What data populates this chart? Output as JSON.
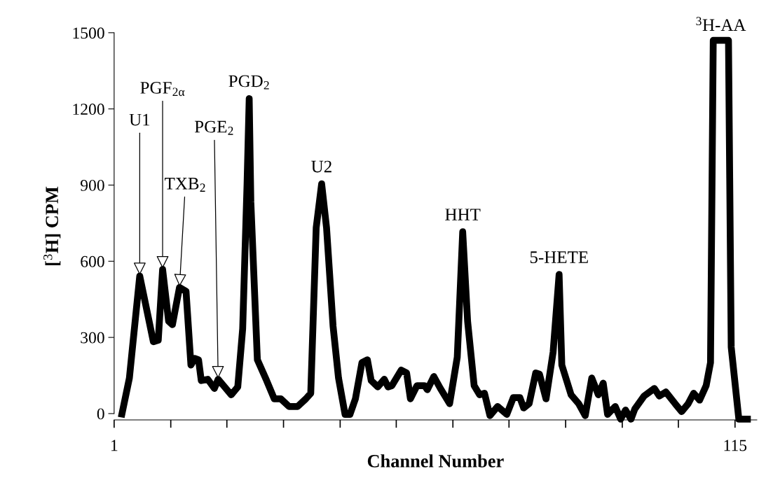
{
  "chart_data": {
    "type": "line",
    "xlabel": "Channel Number",
    "ylabel": "[$^{3}$H] CPM",
    "xlim": [
      1,
      119
    ],
    "ylim": [
      -25,
      1500
    ],
    "xticks": [
      {
        "value": 1,
        "label": "1"
      },
      {
        "value": 11.4,
        "label": null
      },
      {
        "value": 21.7,
        "label": null
      },
      {
        "value": 32.1,
        "label": null
      },
      {
        "value": 42.5,
        "label": null
      },
      {
        "value": 52.8,
        "label": null
      },
      {
        "value": 63.2,
        "label": null
      },
      {
        "value": 73.5,
        "label": null
      },
      {
        "value": 83.9,
        "label": null
      },
      {
        "value": 94.3,
        "label": null
      },
      {
        "value": 104.6,
        "label": null
      },
      {
        "value": 115,
        "label": "115"
      }
    ],
    "yticks": [
      0,
      300,
      600,
      900,
      1200,
      1500
    ],
    "grid": false,
    "marker": "none",
    "line_style": "solid",
    "series": [
      {
        "color": "#000000",
        "x": [
          2.3,
          3.8,
          5.7,
          8.2,
          9.1,
          9.9,
          11.0,
          11.7,
          13.0,
          14.2,
          15.1,
          15.8,
          16.5,
          17.0,
          18.2,
          19.4,
          20.1,
          21.1,
          22.5,
          23.7,
          24.6,
          25.4,
          25.8,
          26.1,
          27.3,
          29.0,
          30.4,
          31.6,
          33.1,
          34.7,
          36.2,
          37.1,
          38.1,
          39.1,
          40.0,
          41.2,
          42.2,
          43.4,
          44.3,
          45.3,
          46.5,
          47.5,
          48.2,
          49.4,
          50.6,
          51.3,
          52.0,
          53.7,
          54.7,
          55.4,
          56.6,
          58.0,
          58.5,
          59.7,
          60.9,
          62.6,
          64.0,
          65.0,
          65.9,
          67.1,
          68.1,
          69.0,
          70.0,
          71.4,
          73.1,
          74.3,
          75.5,
          76.2,
          77.2,
          78.4,
          79.1,
          80.3,
          81.6,
          82.7,
          83.2,
          84.9,
          86.3,
          87.5,
          88.7,
          89.9,
          90.8,
          91.6,
          93.0,
          94.0,
          94.9,
          95.9,
          96.6,
          98.3,
          100.2,
          101.1,
          102.3,
          104.0,
          105.2,
          106.4,
          107.4,
          108.5,
          109.7,
          110.5,
          111.0,
          113.8,
          114.3,
          115.7,
          117.9
        ],
        "values": [
          -15,
          140,
          542,
          283,
          289,
          568,
          364,
          350,
          497,
          482,
          191,
          217,
          212,
          130,
          135,
          99,
          135,
          110,
          74,
          105,
          334,
          900,
          1241,
          834,
          212,
          130,
          58,
          58,
          28,
          28,
          58,
          80,
          732,
          905,
          732,
          344,
          140,
          -3,
          -3,
          58,
          201,
          212,
          130,
          105,
          135,
          105,
          110,
          171,
          160,
          58,
          110,
          110,
          94,
          146,
          99,
          39,
          222,
          716,
          364,
          110,
          74,
          80,
          -8,
          28,
          -3,
          63,
          63,
          22,
          39,
          160,
          155,
          58,
          242,
          548,
          191,
          74,
          39,
          -8,
          140,
          74,
          120,
          -3,
          28,
          -22,
          14,
          -22,
          18,
          69,
          99,
          69,
          85,
          39,
          8,
          39,
          80,
          53,
          110,
          201,
          1470,
          1470,
          262,
          -22,
          -22
        ]
      }
    ],
    "annotations": [
      {
        "text": "U1",
        "x": 5.7,
        "y": 542
      },
      {
        "text": "PGF$_{2α}$",
        "x": 9.9,
        "y": 568
      },
      {
        "text": "TXB$_{2}$",
        "x": 13.0,
        "y": 497
      },
      {
        "text": "PGE$_{2}$",
        "x": 20.1,
        "y": 135
      },
      {
        "text": "PGD$_{2}$",
        "x": 25.8,
        "y": 1241
      },
      {
        "text": "U2",
        "x": 39.1,
        "y": 905
      },
      {
        "text": "HHT",
        "x": 65.0,
        "y": 716
      },
      {
        "text": "5-HETE",
        "x": 82.7,
        "y": 548
      },
      {
        "text": "$^{3}$H-AA",
        "x": 112.4,
        "y": 1470
      }
    ]
  }
}
